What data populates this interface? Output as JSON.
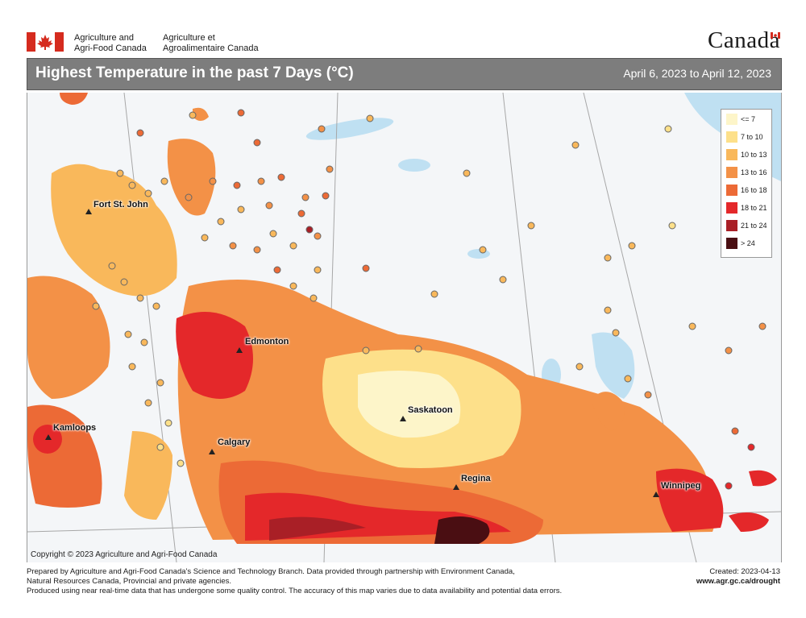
{
  "header": {
    "department_en": "Agriculture and\nAgri-Food Canada",
    "department_fr": "Agriculture et\nAgroalimentaire Canada",
    "wordmark": "Canada"
  },
  "title_bar": {
    "title": "Highest Temperature in the past 7 Days (°C)",
    "date_range": "April 6, 2023 to April 12, 2023"
  },
  "legend": {
    "items": [
      {
        "label": "<= 7",
        "color": "#fdf5c9"
      },
      {
        "label": "7 to 10",
        "color": "#fde08a"
      },
      {
        "label": "10 to 13",
        "color": "#f9b85b"
      },
      {
        "label": "13 to 16",
        "color": "#f39147"
      },
      {
        "label": "16 to 18",
        "color": "#ec6a36"
      },
      {
        "label": "18 to 21",
        "color": "#e4282a"
      },
      {
        "label": "21 to 24",
        "color": "#a91f26"
      },
      {
        "label": "> 24",
        "color": "#4a0e12"
      }
    ]
  },
  "cities": [
    {
      "name": "Fort St. John"
    },
    {
      "name": "Edmonton"
    },
    {
      "name": "Kamloops"
    },
    {
      "name": "Calgary"
    },
    {
      "name": "Saskatoon"
    },
    {
      "name": "Regina"
    },
    {
      "name": "Winnipeg"
    }
  ],
  "map_copyright": "Copyright © 2023 Agriculture and Agri-Food Canada",
  "footer": {
    "line1": "Prepared by Agriculture and Agri-Food Canada's Science and Technology Branch. Data provided through partnership with Environment Canada,",
    "line2": "Natural Resources Canada, Provincial and private agencies.",
    "line3": "Produced using near real-time data that has undergone some quality control. The accuracy of this map varies due to data availability and potential data errors.",
    "created": "Created: 2023-04-13",
    "url": "www.agr.gc.ca/drought"
  }
}
